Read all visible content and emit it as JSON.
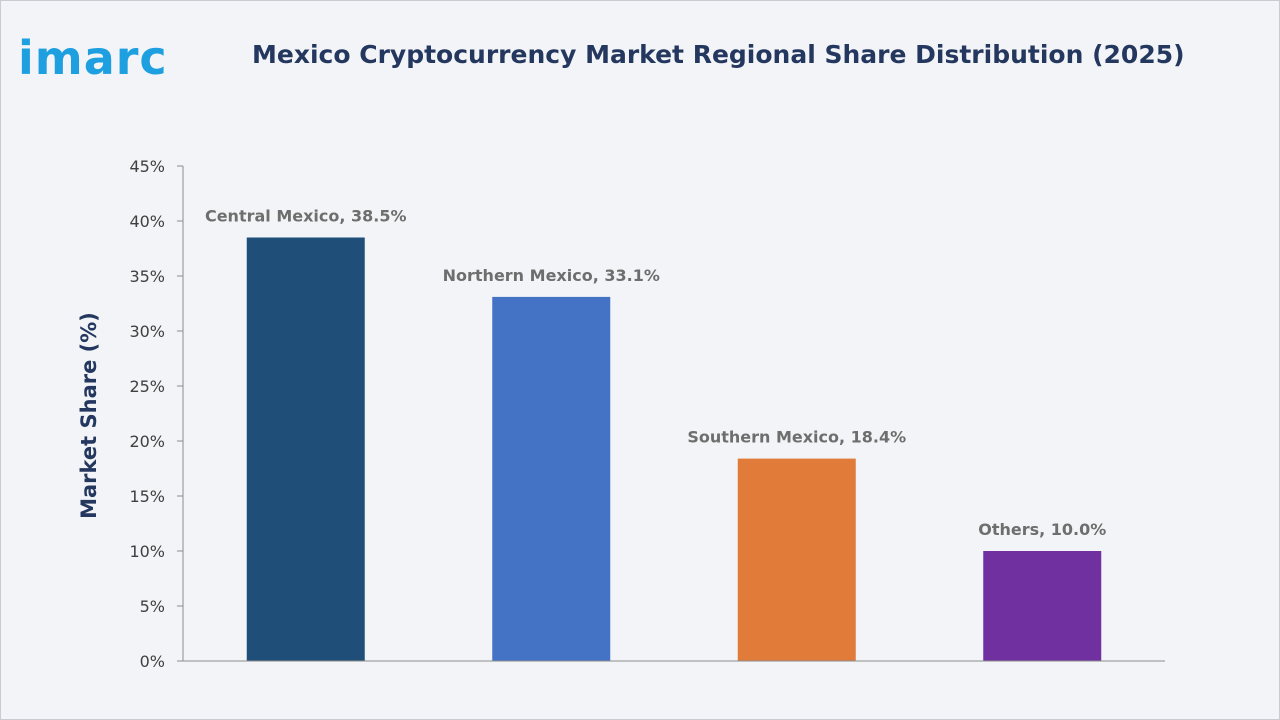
{
  "logo": {
    "text": "imarc"
  },
  "title": "Mexico Cryptocurrency Market Regional Share Distribution (2025)",
  "chart_data": {
    "type": "bar",
    "title": "Mexico Cryptocurrency Market Regional Share Distribution (2025)",
    "xlabel": "",
    "ylabel": "Market Share (%)",
    "categories": [
      "Central Mexico",
      "Northern Mexico",
      "Southern Mexico",
      "Others"
    ],
    "values": [
      38.5,
      33.1,
      18.4,
      10.0
    ],
    "data_labels": [
      "Central Mexico, 38.5%",
      "Northern Mexico, 33.1%",
      "Southern Mexico, 18.4%",
      "Others, 10.0%"
    ],
    "colors": [
      "#1f4e79",
      "#4472c4",
      "#e07b39",
      "#7030a0"
    ],
    "ylim": [
      0,
      45
    ],
    "yticks": [
      0,
      5,
      10,
      15,
      20,
      25,
      30,
      35,
      40,
      45
    ],
    "ytick_labels": [
      "0%",
      "5%",
      "10%",
      "15%",
      "20%",
      "25%",
      "30%",
      "35%",
      "40%",
      "45%"
    ],
    "grid": false,
    "legend": "none"
  }
}
